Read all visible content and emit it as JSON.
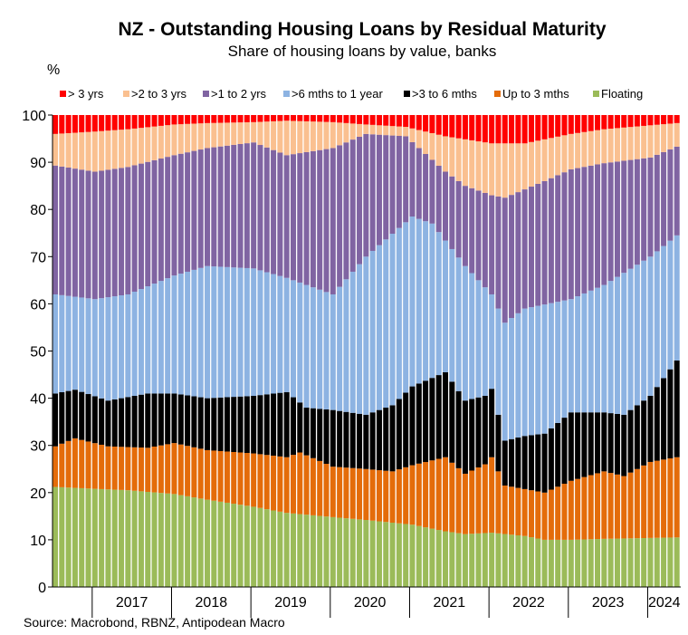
{
  "chart_data": {
    "type": "bar",
    "stacked": true,
    "title": "NZ - Outstanding Housing Loans by Residual Maturity",
    "subtitle": "Share of housing loans by value, banks",
    "ylabel": "%",
    "xlabel": "",
    "ylim": [
      0,
      100
    ],
    "y_ticks": [
      0,
      10,
      20,
      30,
      40,
      50,
      60,
      70,
      80,
      90,
      100
    ],
    "grid": false,
    "legend_position": "top",
    "source": "Source: Macrobond, RBNZ, Antipodean Macro",
    "year_labels": [
      "2017",
      "2018",
      "2019",
      "2020",
      "2021",
      "2022",
      "2023",
      "2024"
    ],
    "bands_bottom_to_top": [
      "Floating",
      "Up to 3 mths",
      ">3 to 6 mths",
      ">6 mths to 1 year",
      ">1 to 2 yrs",
      ">2 to 3 yrs",
      "> 3 yrs"
    ],
    "legend_order": [
      "> 3 yrs",
      ">2 to 3 yrs",
      ">1 to 2 yrs",
      ">6 mths to 1 year",
      ">3 to 6 mths",
      "Up to 3 mths",
      "Floating"
    ],
    "colors": {
      "> 3 yrs": "#ff0000",
      ">2 to 3 yrs": "#fac090",
      ">1 to 2 yrs": "#8064a2",
      ">6 mths to 1 year": "#8db3e2",
      ">3 to 6 mths": "#000000",
      "Up to 3 mths": "#e46c0a",
      "Floating": "#9bbb59"
    },
    "period": {
      "start": "2016-07",
      "end": "2024-05",
      "frequency": "monthly"
    },
    "series": [
      {
        "name": "Floating",
        "anchors": [
          [
            "2016-07",
            21.2
          ],
          [
            "2017-01",
            20.8
          ],
          [
            "2017-06",
            20.5
          ],
          [
            "2018-01",
            19.7
          ],
          [
            "2018-06",
            18.5
          ],
          [
            "2019-01",
            17.0
          ],
          [
            "2019-06",
            15.7
          ],
          [
            "2020-01",
            14.8
          ],
          [
            "2020-06",
            14.2
          ],
          [
            "2021-01",
            13.2
          ],
          [
            "2021-06",
            11.8
          ],
          [
            "2021-09",
            11.2
          ],
          [
            "2022-01",
            11.5
          ],
          [
            "2022-06",
            10.8
          ],
          [
            "2022-09",
            10.0
          ],
          [
            "2023-01",
            10.0
          ],
          [
            "2023-06",
            10.2
          ],
          [
            "2024-05",
            10.5
          ]
        ]
      },
      {
        "name": "Up to 3 mths",
        "anchors": [
          [
            "2016-07",
            29.8
          ],
          [
            "2016-10",
            31.5
          ],
          [
            "2017-03",
            29.8
          ],
          [
            "2017-09",
            29.5
          ],
          [
            "2018-01",
            30.5
          ],
          [
            "2018-06",
            29.0
          ],
          [
            "2019-01",
            28.3
          ],
          [
            "2019-06",
            27.5
          ],
          [
            "2019-08",
            28.5
          ],
          [
            "2020-01",
            25.5
          ],
          [
            "2020-06",
            25.0
          ],
          [
            "2020-10",
            24.5
          ],
          [
            "2021-01",
            25.8
          ],
          [
            "2021-06",
            27.5
          ],
          [
            "2021-09",
            24.0
          ],
          [
            "2021-12",
            26.0
          ],
          [
            "2022-01",
            27.5
          ],
          [
            "2022-03",
            21.5
          ],
          [
            "2022-09",
            20.0
          ],
          [
            "2023-01",
            22.5
          ],
          [
            "2023-06",
            24.5
          ],
          [
            "2023-09",
            23.5
          ],
          [
            "2024-01",
            26.5
          ],
          [
            "2024-05",
            27.5
          ]
        ]
      },
      {
        "name": ">3 to 6 mths",
        "anchors": [
          [
            "2016-07",
            41.0
          ],
          [
            "2016-10",
            41.8
          ],
          [
            "2017-03",
            39.5
          ],
          [
            "2017-09",
            41.0
          ],
          [
            "2018-01",
            41.0
          ],
          [
            "2018-06",
            40.0
          ],
          [
            "2019-01",
            40.5
          ],
          [
            "2019-06",
            41.3
          ],
          [
            "2019-09",
            38.0
          ],
          [
            "2020-01",
            37.5
          ],
          [
            "2020-06",
            36.5
          ],
          [
            "2020-10",
            38.5
          ],
          [
            "2021-01",
            42.5
          ],
          [
            "2021-06",
            45.5
          ],
          [
            "2021-09",
            39.5
          ],
          [
            "2021-12",
            40.5
          ],
          [
            "2022-01",
            42.0
          ],
          [
            "2022-03",
            31.0
          ],
          [
            "2022-06",
            32.0
          ],
          [
            "2022-09",
            32.5
          ],
          [
            "2023-01",
            37.0
          ],
          [
            "2023-06",
            37.0
          ],
          [
            "2023-09",
            36.5
          ],
          [
            "2024-01",
            40.5
          ],
          [
            "2024-05",
            48.0
          ]
        ]
      },
      {
        "name": ">6 mths to 1 year",
        "anchors": [
          [
            "2016-07",
            62.0
          ],
          [
            "2017-01",
            61.0
          ],
          [
            "2017-06",
            62.0
          ],
          [
            "2018-01",
            66.0
          ],
          [
            "2018-06",
            68.0
          ],
          [
            "2019-01",
            67.5
          ],
          [
            "2019-06",
            65.5
          ],
          [
            "2020-01",
            62.0
          ],
          [
            "2020-06",
            70.0
          ],
          [
            "2021-01",
            78.5
          ],
          [
            "2021-04",
            77.0
          ],
          [
            "2021-09",
            68.0
          ],
          [
            "2022-01",
            62.0
          ],
          [
            "2022-03",
            56.0
          ],
          [
            "2022-06",
            59.0
          ],
          [
            "2023-01",
            61.0
          ],
          [
            "2023-06",
            64.0
          ],
          [
            "2024-01",
            70.0
          ],
          [
            "2024-05",
            74.5
          ]
        ]
      },
      {
        "name": ">1 to 2 yrs",
        "anchors": [
          [
            "2016-07",
            89.3
          ],
          [
            "2017-01",
            88.0
          ],
          [
            "2017-06",
            89.0
          ],
          [
            "2018-01",
            91.5
          ],
          [
            "2018-06",
            93.0
          ],
          [
            "2019-01",
            94.2
          ],
          [
            "2019-06",
            91.5
          ],
          [
            "2020-01",
            93.0
          ],
          [
            "2020-06",
            96.0
          ],
          [
            "2020-12",
            95.5
          ],
          [
            "2021-06",
            88.0
          ],
          [
            "2021-09",
            85.0
          ],
          [
            "2022-01",
            83.0
          ],
          [
            "2022-03",
            82.5
          ],
          [
            "2022-09",
            86.0
          ],
          [
            "2023-01",
            88.5
          ],
          [
            "2023-06",
            89.8
          ],
          [
            "2024-01",
            91.0
          ],
          [
            "2024-05",
            93.3
          ]
        ]
      },
      {
        "name": ">2 to 3 yrs",
        "anchors": [
          [
            "2016-07",
            96.0
          ],
          [
            "2017-01",
            96.5
          ],
          [
            "2017-06",
            97.0
          ],
          [
            "2018-01",
            98.0
          ],
          [
            "2018-06",
            98.3
          ],
          [
            "2019-01",
            98.5
          ],
          [
            "2019-06",
            98.8
          ],
          [
            "2020-01",
            98.5
          ],
          [
            "2020-06",
            98.0
          ],
          [
            "2020-12",
            97.5
          ],
          [
            "2021-06",
            95.5
          ],
          [
            "2022-01",
            94.0
          ],
          [
            "2022-06",
            94.0
          ],
          [
            "2023-01",
            96.0
          ],
          [
            "2023-06",
            97.0
          ],
          [
            "2024-05",
            98.3
          ]
        ]
      }
    ]
  }
}
